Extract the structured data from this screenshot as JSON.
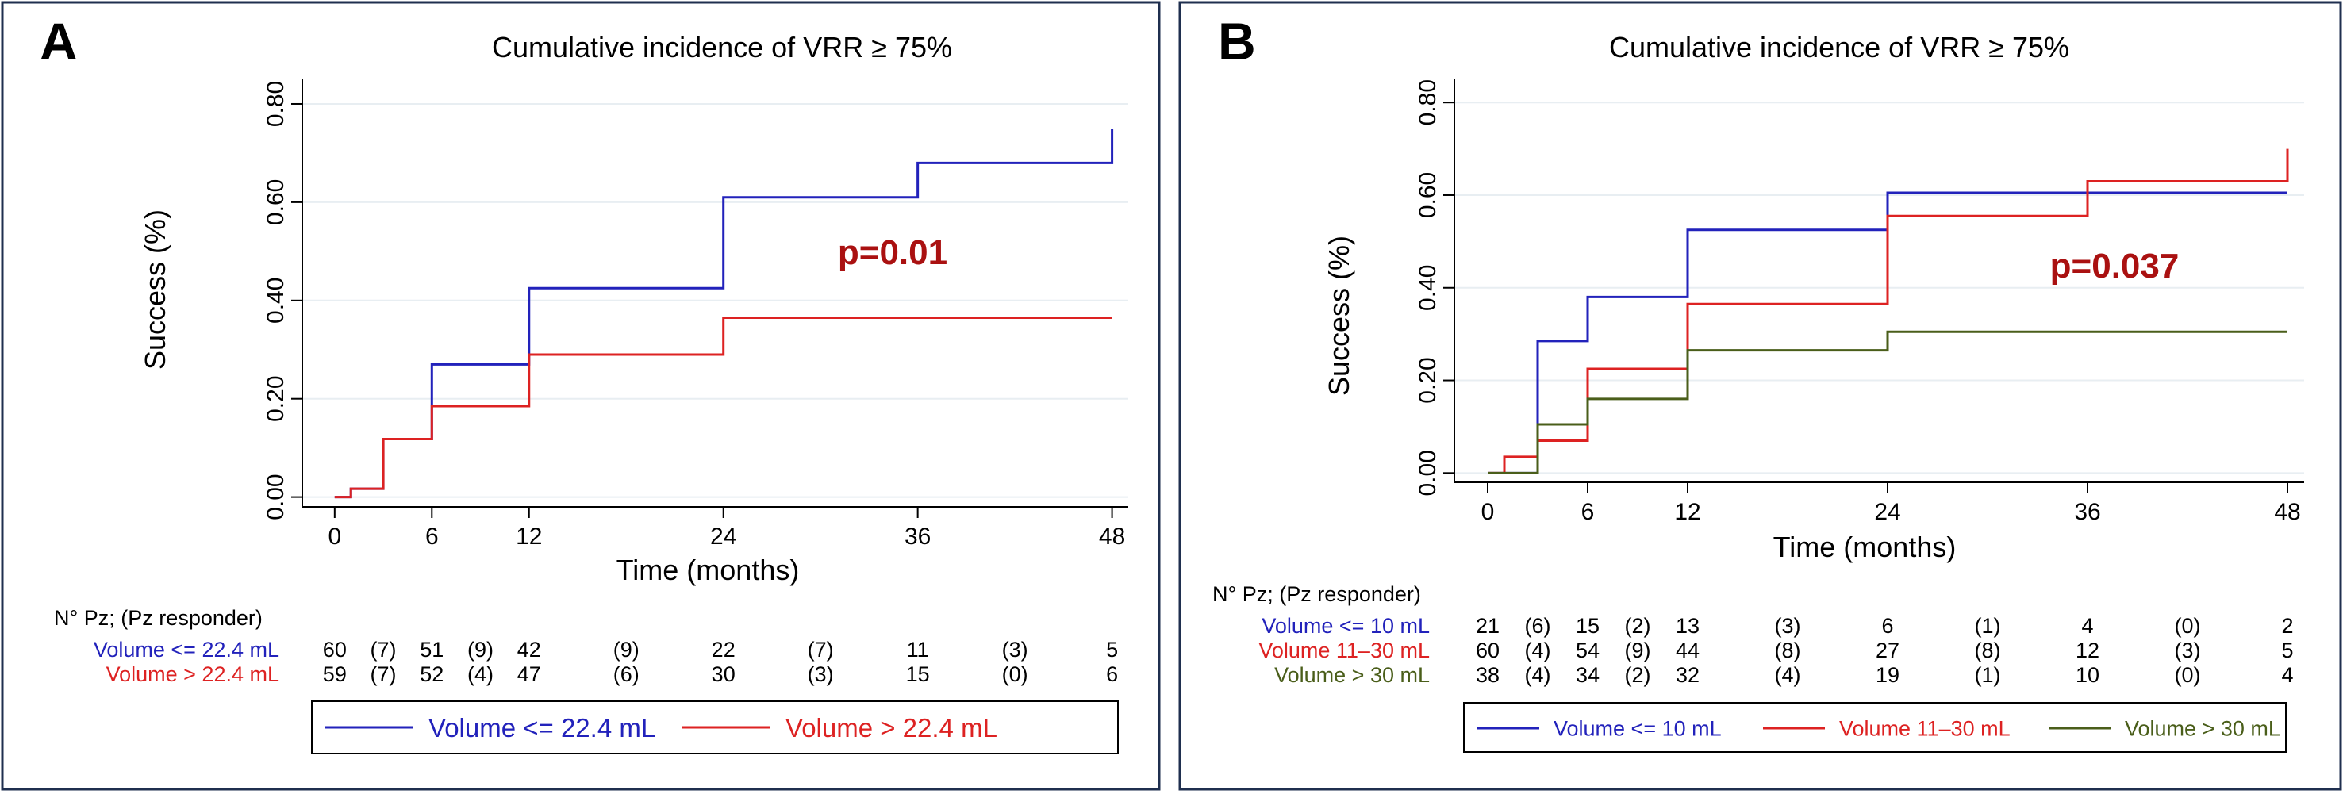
{
  "chart_data": [
    {
      "type": "line",
      "step": true,
      "panel_label": "A",
      "title": "Cumulative incidence of VRR ≥ 75%",
      "xlabel": "Time (months)",
      "ylabel": "Success   (%)",
      "xlim": [
        -2,
        49
      ],
      "ylim": [
        -0.02,
        0.85
      ],
      "xticks": [
        "0",
        "6",
        "12",
        "24",
        "36",
        "48"
      ],
      "yticks": [
        "0.00",
        "0.20",
        "0.40",
        "0.60",
        "0.80"
      ],
      "annotation": {
        "text": "p=0.01",
        "color": "#aa1111"
      },
      "series": [
        {
          "name": "Volume <= 22.4 mL",
          "color": "#2222bb",
          "points": [
            [
              0,
              0
            ],
            [
              1,
              0.017
            ],
            [
              3,
              0.118
            ],
            [
              6,
              0.27
            ],
            [
              12,
              0.425
            ],
            [
              24,
              0.61
            ],
            [
              36,
              0.68
            ],
            [
              48,
              0.75
            ]
          ]
        },
        {
          "name": "Volume > 22.4 mL",
          "color": "#dd2222",
          "points": [
            [
              0,
              0
            ],
            [
              1,
              0.017
            ],
            [
              3,
              0.118
            ],
            [
              6,
              0.185
            ],
            [
              12,
              0.29
            ],
            [
              24,
              0.365
            ],
            [
              48,
              0.365
            ]
          ]
        }
      ],
      "risk_table": {
        "header": "N° Pz; (Pz responder)",
        "rows": [
          {
            "label": "Volume <= 22.4 mL",
            "color": "#2222bb",
            "values": [
              "60",
              "(7)",
              "51",
              "(9)",
              "42",
              "(9)",
              "22",
              "(7)",
              "11",
              "(3)",
              "5"
            ]
          },
          {
            "label": "Volume > 22.4 mL",
            "color": "#dd2222",
            "values": [
              "59",
              "(7)",
              "52",
              "(4)",
              "47",
              "(6)",
              "30",
              "(3)",
              "15",
              "(0)",
              "6"
            ]
          }
        ]
      },
      "legend": [
        {
          "label": "Volume <= 22.4 mL",
          "color": "#2222bb"
        },
        {
          "label": "Volume > 22.4 mL",
          "color": "#dd2222"
        }
      ]
    },
    {
      "type": "line",
      "step": true,
      "panel_label": "B",
      "title": "Cumulative incidence of VRR ≥ 75%",
      "xlabel": "Time (months)",
      "ylabel": "Success   (%)",
      "xlim": [
        -2,
        49
      ],
      "ylim": [
        -0.02,
        0.85
      ],
      "xticks": [
        "0",
        "6",
        "12",
        "24",
        "36",
        "48"
      ],
      "yticks": [
        "0.00",
        "0.20",
        "0.40",
        "0.60",
        "0.80"
      ],
      "annotation": {
        "text": "p=0.037",
        "color": "#aa1111"
      },
      "series": [
        {
          "name": "Volume <= 10 mL",
          "color": "#2222bb",
          "points": [
            [
              0,
              0
            ],
            [
              3,
              0.285
            ],
            [
              6,
              0.38
            ],
            [
              12,
              0.525
            ],
            [
              24,
              0.605
            ],
            [
              48,
              0.605
            ]
          ]
        },
        {
          "name": "Volume 11–30 mL",
          "color": "#dd2222",
          "points": [
            [
              0,
              0
            ],
            [
              1,
              0.035
            ],
            [
              3,
              0.07
            ],
            [
              6,
              0.225
            ],
            [
              12,
              0.365
            ],
            [
              24,
              0.555
            ],
            [
              36,
              0.63
            ],
            [
              48,
              0.7
            ]
          ]
        },
        {
          "name": "Volume > 30 mL",
          "color": "#4a5e1a",
          "points": [
            [
              0,
              0
            ],
            [
              3,
              0.105
            ],
            [
              6,
              0.16
            ],
            [
              12,
              0.265
            ],
            [
              24,
              0.305
            ],
            [
              48,
              0.305
            ]
          ]
        }
      ],
      "risk_table": {
        "header": "N° Pz; (Pz responder)",
        "rows": [
          {
            "label": "Volume <= 10 mL",
            "color": "#2222bb",
            "values": [
              "21",
              "(6)",
              "15",
              "(2)",
              "13",
              "(3)",
              "6",
              "(1)",
              "4",
              "(0)",
              "2"
            ]
          },
          {
            "label": "Volume 11–30 mL",
            "color": "#dd2222",
            "values": [
              "60",
              "(4)",
              "54",
              "(9)",
              "44",
              "(8)",
              "27",
              "(8)",
              "12",
              "(3)",
              "5"
            ]
          },
          {
            "label": "Volume > 30 mL",
            "color": "#4a5e1a",
            "values": [
              "38",
              "(4)",
              "34",
              "(2)",
              "32",
              "(4)",
              "19",
              "(1)",
              "10",
              "(0)",
              "4"
            ]
          }
        ]
      },
      "legend": [
        {
          "label": "Volume <= 10 mL",
          "color": "#2222bb"
        },
        {
          "label": "Volume 11–30 mL",
          "color": "#dd2222"
        },
        {
          "label": "Volume > 30 mL",
          "color": "#4a5e1a"
        }
      ]
    }
  ]
}
